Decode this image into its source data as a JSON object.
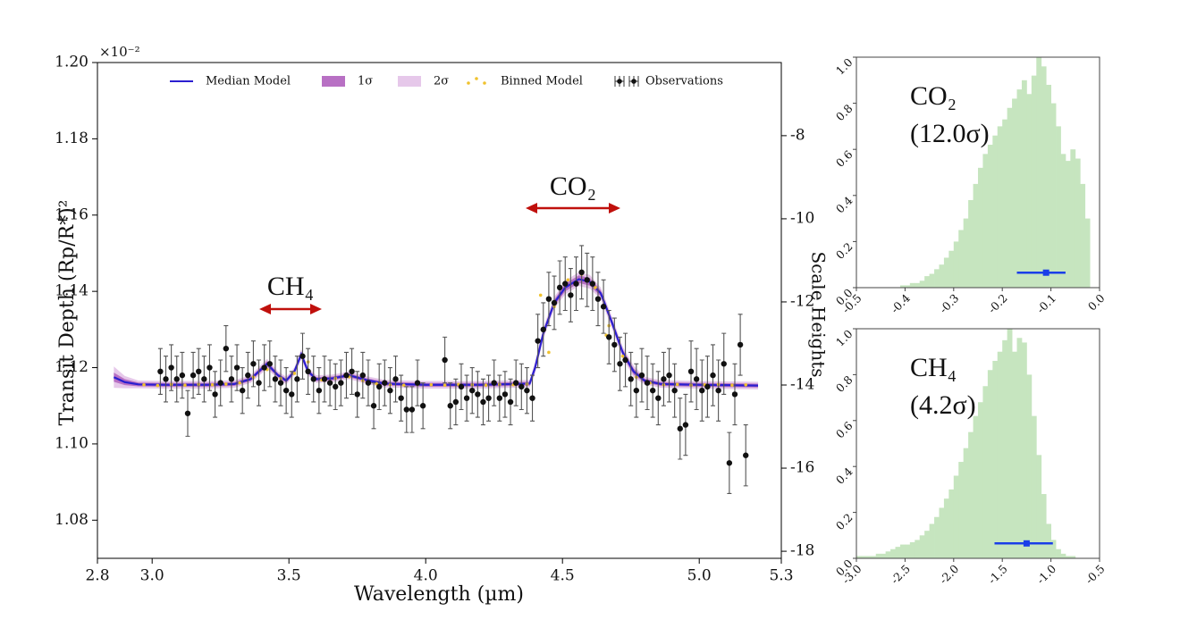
{
  "chart_data": [
    {
      "type": "line",
      "xlabel": "Wavelength (µm)",
      "ylabel": "Transit Depth (Rp/R*)²",
      "y2label": "Scale Heights",
      "offset_text": "×10⁻²",
      "annotations": [
        "CO₂",
        "CH₄"
      ],
      "xlim": [
        2.8,
        5.3
      ],
      "xticks": [
        2.8,
        {
          "value": 3,
          "label": "3.0"
        },
        3.5,
        {
          "value": 4,
          "label": "4.0"
        },
        4.5,
        {
          "value": 5,
          "label": "5.0"
        },
        5.3
      ],
      "ylim": [
        1.07,
        1.2
      ],
      "yticks": [
        1.08,
        {
          "value": 1.1,
          "label": "1.10"
        },
        1.12,
        1.14,
        1.16,
        1.18,
        {
          "value": 1.2,
          "label": "1.20"
        }
      ],
      "y2lim": [
        -18.17,
        -6.24
      ],
      "y2ticks": [
        -18,
        -16,
        -14,
        -12,
        -10,
        -8
      ],
      "legend": "upper center",
      "series": [
        {
          "name": "Median Model",
          "style": "line",
          "color": "#2b1fd0",
          "x": [
            2.86,
            2.9,
            2.95,
            3.05,
            3.2,
            3.3,
            3.36,
            3.42,
            3.46,
            3.49,
            3.52,
            3.545,
            3.57,
            3.6,
            3.66,
            3.72,
            3.78,
            3.85,
            4.0,
            4.2,
            4.38,
            4.4,
            4.43,
            4.47,
            4.51,
            4.56,
            4.6,
            4.64,
            4.68,
            4.72,
            4.76,
            4.8,
            4.86,
            5.0,
            5.215
          ],
          "values": [
            1.1175,
            1.1162,
            1.1156,
            1.1155,
            1.1155,
            1.1157,
            1.117,
            1.121,
            1.118,
            1.1166,
            1.119,
            1.1235,
            1.119,
            1.117,
            1.1172,
            1.118,
            1.1168,
            1.1158,
            1.1155,
            1.1155,
            1.1158,
            1.12,
            1.129,
            1.137,
            1.141,
            1.1432,
            1.1425,
            1.1395,
            1.132,
            1.124,
            1.119,
            1.1166,
            1.1157,
            1.1155,
            1.1153
          ],
          "bands": [
            {
              "name": "1σ",
              "color": "#b870c4",
              "lower": [
                1.1163,
                1.1154,
                1.1151,
                1.115,
                1.115,
                1.1152,
                1.1165,
                1.1203,
                1.1175,
                1.1161,
                1.1185,
                1.1228,
                1.1185,
                1.1165,
                1.1167,
                1.1175,
                1.1163,
                1.1153,
                1.115,
                1.115,
                1.1153,
                1.1192,
                1.1282,
                1.1362,
                1.14,
                1.1422,
                1.1415,
                1.1387,
                1.1312,
                1.1232,
                1.1182,
                1.1161,
                1.1152,
                1.115,
                1.1148
              ],
              "upper": [
                1.1187,
                1.117,
                1.1161,
                1.116,
                1.116,
                1.1162,
                1.1175,
                1.1217,
                1.1185,
                1.1171,
                1.1195,
                1.1242,
                1.1195,
                1.1175,
                1.1177,
                1.1185,
                1.1173,
                1.1163,
                1.116,
                1.116,
                1.1163,
                1.1208,
                1.1298,
                1.1378,
                1.142,
                1.1442,
                1.1435,
                1.1403,
                1.1328,
                1.1248,
                1.1198,
                1.1171,
                1.1162,
                1.116,
                1.1158
              ]
            },
            {
              "name": "2σ",
              "color": "#e6c8ea",
              "lower": [
                1.1147,
                1.1146,
                1.1146,
                1.1145,
                1.1145,
                1.1147,
                1.116,
                1.1197,
                1.117,
                1.1156,
                1.118,
                1.1222,
                1.118,
                1.116,
                1.1162,
                1.117,
                1.1158,
                1.1148,
                1.1145,
                1.1145,
                1.1148,
                1.1185,
                1.1275,
                1.1355,
                1.1392,
                1.1414,
                1.1407,
                1.138,
                1.1305,
                1.1225,
                1.1175,
                1.1156,
                1.1147,
                1.1145,
                1.1143
              ],
              "upper": [
                1.1203,
                1.1178,
                1.1166,
                1.1165,
                1.1165,
                1.1167,
                1.118,
                1.1223,
                1.119,
                1.1176,
                1.12,
                1.1248,
                1.12,
                1.118,
                1.1182,
                1.119,
                1.1178,
                1.1168,
                1.1165,
                1.1165,
                1.1168,
                1.1215,
                1.1305,
                1.1385,
                1.1428,
                1.145,
                1.1443,
                1.141,
                1.1335,
                1.1255,
                1.1205,
                1.1176,
                1.1167,
                1.1165,
                1.1163
              ]
            }
          ]
        },
        {
          "name": "Binned Model",
          "style": "dots",
          "color": "#f0c22e",
          "x": [
            2.97,
            3.02,
            3.07,
            3.12,
            3.17,
            3.22,
            3.27,
            3.32,
            3.37,
            3.42,
            3.47,
            3.52,
            3.57,
            3.62,
            3.67,
            3.72,
            3.77,
            3.82,
            3.87,
            3.92,
            3.97,
            4.02,
            4.07,
            4.12,
            4.17,
            4.22,
            4.27,
            4.32,
            4.37,
            4.42,
            4.45,
            4.47,
            4.52,
            4.57,
            4.62,
            4.66,
            4.67,
            4.72,
            4.77,
            4.82,
            4.87,
            4.92,
            4.97,
            5.02,
            5.07,
            5.12,
            5.17
          ],
          "values": [
            1.1155,
            1.1153,
            1.1156,
            1.1154,
            1.1156,
            1.1155,
            1.1157,
            1.116,
            1.1175,
            1.1195,
            1.1172,
            1.1185,
            1.1215,
            1.1168,
            1.1172,
            1.1176,
            1.1166,
            1.1158,
            1.1155,
            1.1154,
            1.1156,
            1.1155,
            1.1154,
            1.1156,
            1.1155,
            1.1154,
            1.1156,
            1.1155,
            1.1157,
            1.139,
            1.124,
            1.136,
            1.143,
            1.1445,
            1.141,
            1.1285,
            1.131,
            1.123,
            1.1175,
            1.116,
            1.1155,
            1.1156,
            1.1154,
            1.1155,
            1.1156,
            1.1154,
            1.1155
          ]
        },
        {
          "name": "Observations",
          "style": "errorbar",
          "color": "#111111",
          "x": [
            3.03,
            3.05,
            3.07,
            3.09,
            3.11,
            3.13,
            3.15,
            3.17,
            3.19,
            3.21,
            3.23,
            3.25,
            3.27,
            3.29,
            3.31,
            3.33,
            3.35,
            3.37,
            3.39,
            3.41,
            3.43,
            3.45,
            3.47,
            3.49,
            3.51,
            3.53,
            3.55,
            3.57,
            3.59,
            3.61,
            3.63,
            3.65,
            3.67,
            3.69,
            3.71,
            3.73,
            3.75,
            3.77,
            3.79,
            3.81,
            3.83,
            3.85,
            3.87,
            3.89,
            3.91,
            3.93,
            3.95,
            3.97,
            3.99,
            4.07,
            4.09,
            4.11,
            4.13,
            4.15,
            4.17,
            4.19,
            4.21,
            4.23,
            4.25,
            4.27,
            4.29,
            4.31,
            4.33,
            4.35,
            4.37,
            4.39,
            4.41,
            4.43,
            4.45,
            4.47,
            4.49,
            4.51,
            4.53,
            4.55,
            4.57,
            4.59,
            4.61,
            4.63,
            4.65,
            4.67,
            4.69,
            4.71,
            4.73,
            4.75,
            4.77,
            4.79,
            4.81,
            4.83,
            4.85,
            4.87,
            4.89,
            4.91,
            4.93,
            4.95,
            4.97,
            4.99,
            5.01,
            5.03,
            5.05,
            5.07,
            5.09,
            5.11,
            5.13,
            5.15,
            5.17
          ],
          "values": [
            1.119,
            1.117,
            1.12,
            1.117,
            1.118,
            1.108,
            1.118,
            1.119,
            1.117,
            1.12,
            1.113,
            1.116,
            1.125,
            1.117,
            1.12,
            1.114,
            1.118,
            1.121,
            1.116,
            1.12,
            1.121,
            1.117,
            1.116,
            1.114,
            1.113,
            1.117,
            1.123,
            1.119,
            1.117,
            1.114,
            1.117,
            1.116,
            1.115,
            1.116,
            1.118,
            1.119,
            1.113,
            1.118,
            1.116,
            1.11,
            1.115,
            1.116,
            1.114,
            1.117,
            1.112,
            1.109,
            1.109,
            1.116,
            1.11,
            1.122,
            1.11,
            1.111,
            1.115,
            1.112,
            1.114,
            1.113,
            1.111,
            1.112,
            1.116,
            1.112,
            1.113,
            1.111,
            1.116,
            1.115,
            1.114,
            1.112,
            1.127,
            1.13,
            1.138,
            1.137,
            1.141,
            1.142,
            1.139,
            1.142,
            1.145,
            1.143,
            1.142,
            1.138,
            1.136,
            1.128,
            1.126,
            1.121,
            1.122,
            1.117,
            1.114,
            1.118,
            1.116,
            1.114,
            1.112,
            1.117,
            1.118,
            1.114,
            1.104,
            1.105,
            1.119,
            1.117,
            1.114,
            1.115,
            1.118,
            1.114,
            1.121,
            1.095,
            1.113,
            1.126,
            1.097
          ],
          "errors": [
            0.006,
            0.006,
            0.006,
            0.006,
            0.006,
            0.006,
            0.006,
            0.006,
            0.006,
            0.006,
            0.006,
            0.006,
            0.006,
            0.006,
            0.006,
            0.006,
            0.006,
            0.006,
            0.006,
            0.006,
            0.006,
            0.006,
            0.006,
            0.006,
            0.006,
            0.006,
            0.006,
            0.006,
            0.006,
            0.006,
            0.006,
            0.006,
            0.006,
            0.006,
            0.006,
            0.006,
            0.006,
            0.006,
            0.006,
            0.006,
            0.006,
            0.006,
            0.006,
            0.006,
            0.006,
            0.006,
            0.006,
            0.006,
            0.006,
            0.006,
            0.006,
            0.006,
            0.006,
            0.006,
            0.006,
            0.006,
            0.006,
            0.006,
            0.006,
            0.006,
            0.006,
            0.006,
            0.006,
            0.006,
            0.006,
            0.006,
            0.007,
            0.007,
            0.007,
            0.007,
            0.007,
            0.007,
            0.007,
            0.007,
            0.007,
            0.007,
            0.007,
            0.007,
            0.007,
            0.007,
            0.007,
            0.007,
            0.007,
            0.007,
            0.007,
            0.007,
            0.007,
            0.007,
            0.007,
            0.007,
            0.007,
            0.007,
            0.008,
            0.008,
            0.008,
            0.008,
            0.008,
            0.008,
            0.008,
            0.008,
            0.008,
            0.008,
            0.008,
            0.008,
            0.008
          ]
        }
      ]
    },
    {
      "type": "histogram",
      "labels": [
        "CO₂",
        "(12.0σ)"
      ],
      "color": "#c6e5bf",
      "bins": [
        -0.41,
        -0.4,
        -0.39,
        -0.38,
        -0.37,
        -0.36,
        -0.35,
        -0.34,
        -0.33,
        -0.32,
        -0.31,
        -0.3,
        -0.29,
        -0.28,
        -0.27,
        -0.26,
        -0.25,
        -0.24,
        -0.23,
        -0.22,
        -0.21,
        -0.2,
        -0.19,
        -0.18,
        -0.17,
        -0.16,
        -0.15,
        -0.14,
        -0.13,
        -0.12,
        -0.11,
        -0.1,
        -0.09,
        -0.08,
        -0.07,
        -0.06,
        -0.05,
        -0.04,
        -0.03,
        -0.02
      ],
      "counts": [
        0.01,
        0.01,
        0.02,
        0.02,
        0.03,
        0.05,
        0.06,
        0.08,
        0.1,
        0.13,
        0.16,
        0.2,
        0.25,
        0.3,
        0.38,
        0.45,
        0.52,
        0.58,
        0.62,
        0.66,
        0.7,
        0.73,
        0.78,
        0.82,
        0.86,
        0.9,
        0.84,
        0.92,
        1.0,
        0.96,
        0.88,
        0.8,
        0.7,
        0.58,
        0.55,
        0.6,
        0.56,
        0.45,
        0.3
      ],
      "estimate": {
        "median": -0.11,
        "interval": [
          -0.17,
          -0.07
        ],
        "color": "#1a3ee8"
      },
      "xlim": [
        -0.5,
        0
      ],
      "xticks": [
        -0.5,
        -0.4,
        -0.3,
        -0.2,
        -0.1,
        {
          "value": 0,
          "label": "0.0"
        }
      ],
      "ylim": [
        0,
        1
      ],
      "yticks": [
        {
          "value": 0,
          "label": "0.0"
        },
        0.2,
        0.4,
        0.6,
        0.8,
        {
          "value": 1,
          "label": "1.0"
        }
      ]
    },
    {
      "type": "histogram",
      "labels": [
        "CH₄",
        "(4.2σ)"
      ],
      "color": "#c6e5bf",
      "bins": [
        -3.0,
        -2.95,
        -2.9,
        -2.85,
        -2.8,
        -2.75,
        -2.7,
        -2.65,
        -2.6,
        -2.55,
        -2.5,
        -2.45,
        -2.4,
        -2.35,
        -2.3,
        -2.25,
        -2.2,
        -2.15,
        -2.1,
        -2.05,
        -2.0,
        -1.95,
        -1.9,
        -1.85,
        -1.8,
        -1.75,
        -1.7,
        -1.65,
        -1.6,
        -1.55,
        -1.5,
        -1.45,
        -1.4,
        -1.35,
        -1.3,
        -1.25,
        -1.2,
        -1.15,
        -1.1,
        -1.05,
        -1.0,
        -0.95,
        -0.9,
        -0.85,
        -0.8,
        -0.75
      ],
      "counts": [
        0.01,
        0.01,
        0.01,
        0.01,
        0.02,
        0.02,
        0.03,
        0.04,
        0.05,
        0.06,
        0.06,
        0.07,
        0.08,
        0.1,
        0.12,
        0.15,
        0.18,
        0.22,
        0.26,
        0.3,
        0.36,
        0.42,
        0.48,
        0.55,
        0.62,
        0.68,
        0.75,
        0.82,
        0.86,
        0.9,
        0.95,
        1.0,
        0.9,
        0.96,
        0.94,
        0.8,
        0.62,
        0.45,
        0.28,
        0.15,
        0.08,
        0.04,
        0.02,
        0.01,
        0.01
      ],
      "estimate": {
        "median": -1.25,
        "interval": [
          -1.58,
          -0.98
        ],
        "color": "#1a3ee8"
      },
      "xlim": [
        -3.0,
        -0.5
      ],
      "xticks": [
        {
          "value": -3,
          "label": "-3.0"
        },
        -2.5,
        {
          "value": -2,
          "label": "-2.0"
        },
        -1.5,
        {
          "value": -1,
          "label": "-1.0"
        },
        -0.5
      ],
      "ylim": [
        0,
        1
      ],
      "yticks": [
        {
          "value": 0,
          "label": "0.0"
        },
        0.2,
        0.4,
        0.6,
        0.8,
        {
          "value": 1,
          "label": "1.0"
        }
      ]
    }
  ]
}
